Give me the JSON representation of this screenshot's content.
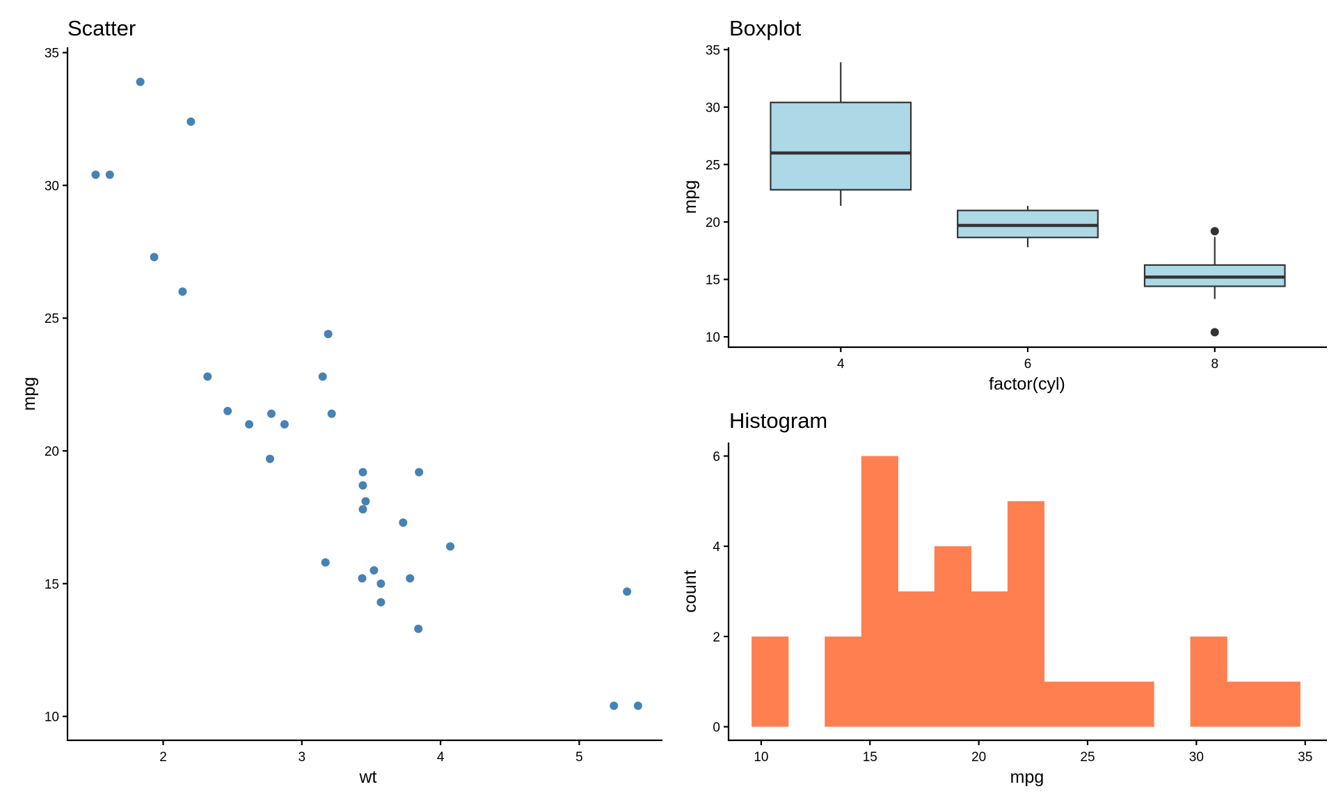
{
  "chart_data": [
    {
      "type": "scatter",
      "title": "Scatter",
      "xlabel": "wt",
      "ylabel": "mpg",
      "xlim": [
        1.31,
        5.6
      ],
      "ylim": [
        9.1,
        35.2
      ],
      "xticks": [
        2,
        3,
        4,
        5
      ],
      "yticks": [
        10,
        15,
        20,
        25,
        30,
        35
      ],
      "grid": false,
      "point_color": "#4682b4",
      "points": [
        {
          "x": 2.62,
          "y": 21.0
        },
        {
          "x": 2.875,
          "y": 21.0
        },
        {
          "x": 2.32,
          "y": 22.8
        },
        {
          "x": 3.215,
          "y": 21.4
        },
        {
          "x": 3.44,
          "y": 18.7
        },
        {
          "x": 3.46,
          "y": 18.1
        },
        {
          "x": 3.57,
          "y": 14.3
        },
        {
          "x": 3.19,
          "y": 24.4
        },
        {
          "x": 3.15,
          "y": 22.8
        },
        {
          "x": 3.44,
          "y": 19.2
        },
        {
          "x": 3.44,
          "y": 17.8
        },
        {
          "x": 4.07,
          "y": 16.4
        },
        {
          "x": 3.73,
          "y": 17.3
        },
        {
          "x": 3.78,
          "y": 15.2
        },
        {
          "x": 5.25,
          "y": 10.4
        },
        {
          "x": 5.424,
          "y": 10.4
        },
        {
          "x": 5.345,
          "y": 14.7
        },
        {
          "x": 2.2,
          "y": 32.4
        },
        {
          "x": 1.615,
          "y": 30.4
        },
        {
          "x": 1.835,
          "y": 33.9
        },
        {
          "x": 2.465,
          "y": 21.5
        },
        {
          "x": 3.52,
          "y": 15.5
        },
        {
          "x": 3.435,
          "y": 15.2
        },
        {
          "x": 3.84,
          "y": 13.3
        },
        {
          "x": 3.845,
          "y": 19.2
        },
        {
          "x": 1.935,
          "y": 27.3
        },
        {
          "x": 2.14,
          "y": 26.0
        },
        {
          "x": 1.513,
          "y": 30.4
        },
        {
          "x": 3.17,
          "y": 15.8
        },
        {
          "x": 2.77,
          "y": 19.7
        },
        {
          "x": 3.57,
          "y": 15.0
        },
        {
          "x": 2.78,
          "y": 21.4
        }
      ]
    },
    {
      "type": "boxplot",
      "title": "Boxplot",
      "xlabel": "factor(cyl)",
      "ylabel": "mpg",
      "ylim": [
        9.1,
        35.2
      ],
      "yticks": [
        10,
        15,
        20,
        25,
        30,
        35
      ],
      "grid": false,
      "box_fill": "#add8e6",
      "box_stroke": "#333333",
      "categories": [
        "4",
        "6",
        "8"
      ],
      "boxes": [
        {
          "category": "4",
          "whisker_low": 21.4,
          "q1": 22.8,
          "median": 26.0,
          "q3": 30.4,
          "whisker_high": 33.9,
          "outliers": []
        },
        {
          "category": "6",
          "whisker_low": 17.8,
          "q1": 18.65,
          "median": 19.7,
          "q3": 21.0,
          "whisker_high": 21.4,
          "outliers": []
        },
        {
          "category": "8",
          "whisker_low": 13.3,
          "q1": 14.4,
          "median": 15.2,
          "q3": 16.25,
          "whisker_high": 18.7,
          "outliers": [
            10.4,
            19.2
          ]
        }
      ]
    },
    {
      "type": "bar",
      "title": "Histogram",
      "xlabel": "mpg",
      "ylabel": "count",
      "xlim": [
        8.5,
        36.0
      ],
      "ylim": [
        -0.3,
        6.3
      ],
      "xticks": [
        10,
        15,
        20,
        25,
        30,
        35
      ],
      "yticks": [
        0,
        2,
        4,
        6
      ],
      "grid": false,
      "bar_color": "#ff7f50",
      "bin_width": 1.68,
      "bins": [
        {
          "x": 10.4,
          "count": 2
        },
        {
          "x": 12.08,
          "count": 0
        },
        {
          "x": 13.76,
          "count": 2
        },
        {
          "x": 15.44,
          "count": 6
        },
        {
          "x": 17.12,
          "count": 3
        },
        {
          "x": 18.8,
          "count": 4
        },
        {
          "x": 20.48,
          "count": 3
        },
        {
          "x": 22.16,
          "count": 5
        },
        {
          "x": 23.84,
          "count": 1
        },
        {
          "x": 25.52,
          "count": 1
        },
        {
          "x": 27.2,
          "count": 1
        },
        {
          "x": 28.88,
          "count": 0
        },
        {
          "x": 30.56,
          "count": 2
        },
        {
          "x": 32.24,
          "count": 1
        },
        {
          "x": 33.92,
          "count": 1
        }
      ]
    }
  ]
}
